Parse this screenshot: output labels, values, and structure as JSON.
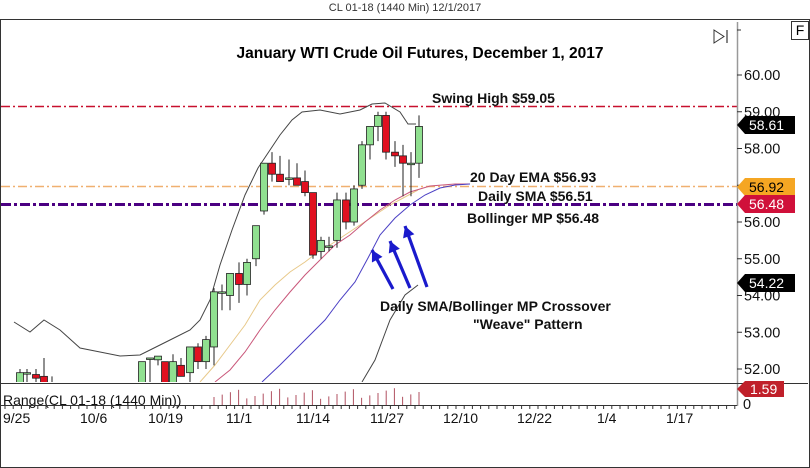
{
  "window": {
    "caption": "CL 01-18 (1440 Min)  12/1/2017",
    "f_button": "F",
    "scroll_end_icon": "skip-to-end-icon"
  },
  "chart_data": {
    "type": "candlestick",
    "title": "January WTI Crude Oil Futures, December 1, 2017",
    "symbol": "CL 01-18 (1440 Min)",
    "date": "12/1/2017",
    "ylim": [
      51.5,
      60.5
    ],
    "y_ticks": [
      "60.00",
      "59.00",
      "58.00",
      "57.00",
      "56.00",
      "55.00",
      "54.00",
      "53.00",
      "52.00"
    ],
    "x_ticks": [
      "9/25",
      "10/6",
      "10/19",
      "11/1",
      "11/14",
      "11/27",
      "12/10",
      "12/22",
      "1/4",
      "1/17"
    ],
    "grid": false,
    "candles": [
      {
        "x": 20,
        "o": 51.4,
        "h": 52.0,
        "l": 51.3,
        "c": 51.9
      },
      {
        "x": 27,
        "o": 51.9,
        "h": 52.0,
        "l": 51.3,
        "c": 51.9
      },
      {
        "x": 36,
        "o": 51.85,
        "h": 52.0,
        "l": 51.6,
        "c": 51.75
      },
      {
        "x": 44,
        "o": 51.8,
        "h": 52.3,
        "l": 51.3,
        "c": 51.4
      },
      {
        "x": 52,
        "o": 51.5,
        "h": 51.8,
        "l": 51.3,
        "c": 51.4
      },
      {
        "x": 61,
        "o": 51.4,
        "h": 51.5,
        "l": 51.3,
        "c": 51.3
      },
      {
        "x": 135,
        "o": 51.3,
        "h": 51.5,
        "l": 51.3,
        "c": 51.4
      },
      {
        "x": 142,
        "o": 51.6,
        "h": 52.1,
        "l": 51.3,
        "c": 52.2
      },
      {
        "x": 150,
        "o": 52.3,
        "h": 52.3,
        "l": 51.4,
        "c": 52.3
      },
      {
        "x": 158,
        "o": 52.25,
        "h": 52.35,
        "l": 52.1,
        "c": 52.35
      },
      {
        "x": 165,
        "o": 52.2,
        "h": 52.2,
        "l": 51.6,
        "c": 51.6
      },
      {
        "x": 173,
        "o": 51.6,
        "h": 52.4,
        "l": 51.4,
        "c": 52.2
      },
      {
        "x": 181,
        "o": 52.1,
        "h": 52.3,
        "l": 51.8,
        "c": 51.8
      },
      {
        "x": 190,
        "o": 51.9,
        "h": 52.6,
        "l": 51.3,
        "c": 52.6
      },
      {
        "x": 198,
        "o": 52.6,
        "h": 52.7,
        "l": 52.0,
        "c": 52.2
      },
      {
        "x": 206,
        "o": 52.2,
        "h": 52.9,
        "l": 52.0,
        "c": 52.8
      },
      {
        "x": 214,
        "o": 52.6,
        "h": 54.2,
        "l": 52.1,
        "c": 54.1
      },
      {
        "x": 222,
        "o": 54.1,
        "h": 54.3,
        "l": 53.6,
        "c": 54.1
      },
      {
        "x": 230,
        "o": 54.0,
        "h": 54.6,
        "l": 53.6,
        "c": 54.6
      },
      {
        "x": 239,
        "o": 54.6,
        "h": 54.9,
        "l": 53.8,
        "c": 54.3
      },
      {
        "x": 247,
        "o": 54.3,
        "h": 55.0,
        "l": 54.0,
        "c": 54.9
      },
      {
        "x": 256,
        "o": 55.0,
        "h": 55.9,
        "l": 54.8,
        "c": 55.9
      },
      {
        "x": 264,
        "o": 56.3,
        "h": 57.6,
        "l": 56.2,
        "c": 57.6
      },
      {
        "x": 272,
        "o": 57.6,
        "h": 57.9,
        "l": 57.1,
        "c": 57.3
      },
      {
        "x": 280,
        "o": 57.3,
        "h": 57.8,
        "l": 57.1,
        "c": 57.1
      },
      {
        "x": 289,
        "o": 57.2,
        "h": 57.7,
        "l": 57.0,
        "c": 57.2
      },
      {
        "x": 297,
        "o": 57.2,
        "h": 57.6,
        "l": 57.0,
        "c": 57.0
      },
      {
        "x": 305,
        "o": 57.1,
        "h": 57.4,
        "l": 56.7,
        "c": 56.8
      },
      {
        "x": 313,
        "o": 56.8,
        "h": 56.8,
        "l": 55.0,
        "c": 55.1
      },
      {
        "x": 321,
        "o": 55.2,
        "h": 55.6,
        "l": 55.0,
        "c": 55.5
      },
      {
        "x": 329,
        "o": 55.35,
        "h": 55.6,
        "l": 55.2,
        "c": 55.35
      },
      {
        "x": 337,
        "o": 55.5,
        "h": 56.8,
        "l": 55.3,
        "c": 56.6
      },
      {
        "x": 346,
        "o": 56.6,
        "h": 56.8,
        "l": 55.8,
        "c": 56.0
      },
      {
        "x": 354,
        "o": 56.0,
        "h": 57.0,
        "l": 55.9,
        "c": 56.9
      },
      {
        "x": 362,
        "o": 57.0,
        "h": 58.2,
        "l": 56.9,
        "c": 58.1
      },
      {
        "x": 370,
        "o": 58.1,
        "h": 58.6,
        "l": 57.7,
        "c": 58.6
      },
      {
        "x": 378,
        "o": 58.6,
        "h": 59.0,
        "l": 58.2,
        "c": 58.9
      },
      {
        "x": 386,
        "o": 58.9,
        "h": 59.0,
        "l": 57.7,
        "c": 57.9
      },
      {
        "x": 395,
        "o": 57.9,
        "h": 58.2,
        "l": 57.5,
        "c": 57.8
      },
      {
        "x": 403,
        "o": 57.8,
        "h": 58.1,
        "l": 56.7,
        "c": 57.6
      },
      {
        "x": 411,
        "o": 57.6,
        "h": 57.9,
        "l": 56.7,
        "c": 57.6
      },
      {
        "x": 419,
        "o": 57.6,
        "h": 58.9,
        "l": 57.2,
        "c": 58.6
      }
    ],
    "series": [
      {
        "name": "Upper Bollinger Band",
        "color": "#333333"
      },
      {
        "name": "20 Day EMA",
        "color": "#e8c98a",
        "last": 56.92
      },
      {
        "name": "Daily SMA",
        "color": "#c9577a"
      },
      {
        "name": "Bollinger MP",
        "color": "#4a3fc4",
        "last": 56.48
      },
      {
        "name": "Lower Bollinger Band",
        "color": "#333333",
        "last": 54.22
      }
    ],
    "horizontal_lines": [
      {
        "label": "Swing High $59.05",
        "price": 59.05,
        "color": "#c8102e",
        "style": "dash-dot"
      },
      {
        "label": "20 Day EMA $56.93",
        "price": 56.93,
        "color": "#f0b070",
        "style": "dash-dot"
      },
      {
        "label": "Daily SMA $56.51",
        "price": 56.51,
        "color": "#4b0082",
        "style": "dash-dot-thick"
      },
      {
        "label": "Bollinger MP $56.48",
        "price": 56.48,
        "color": "#4b0082",
        "style": "dash-dot-thick"
      }
    ],
    "price_tags": [
      {
        "value": "58.61",
        "bg": "#000000",
        "fg": "#ffffff"
      },
      {
        "value": "56.92",
        "bg": "#f5a623",
        "fg": "#000000"
      },
      {
        "value": "56.48",
        "bg": "#d0103a",
        "fg": "#ffffff"
      },
      {
        "value": "54.22",
        "bg": "#000000",
        "fg": "#ffffff"
      }
    ],
    "annotations": [
      "Swing High $59.05",
      "20 Day EMA $56.93",
      "Daily SMA $56.51",
      "Bollinger MP $56.48",
      "Daily SMA/Bollinger MP Crossover",
      "\"Weave\" Pattern"
    ],
    "lower_panel": {
      "label": "Range(CL 01-18 (1440 Min))",
      "value_tag": "1.59",
      "tag_bg": "#c0202a",
      "y_tick": "0"
    }
  }
}
